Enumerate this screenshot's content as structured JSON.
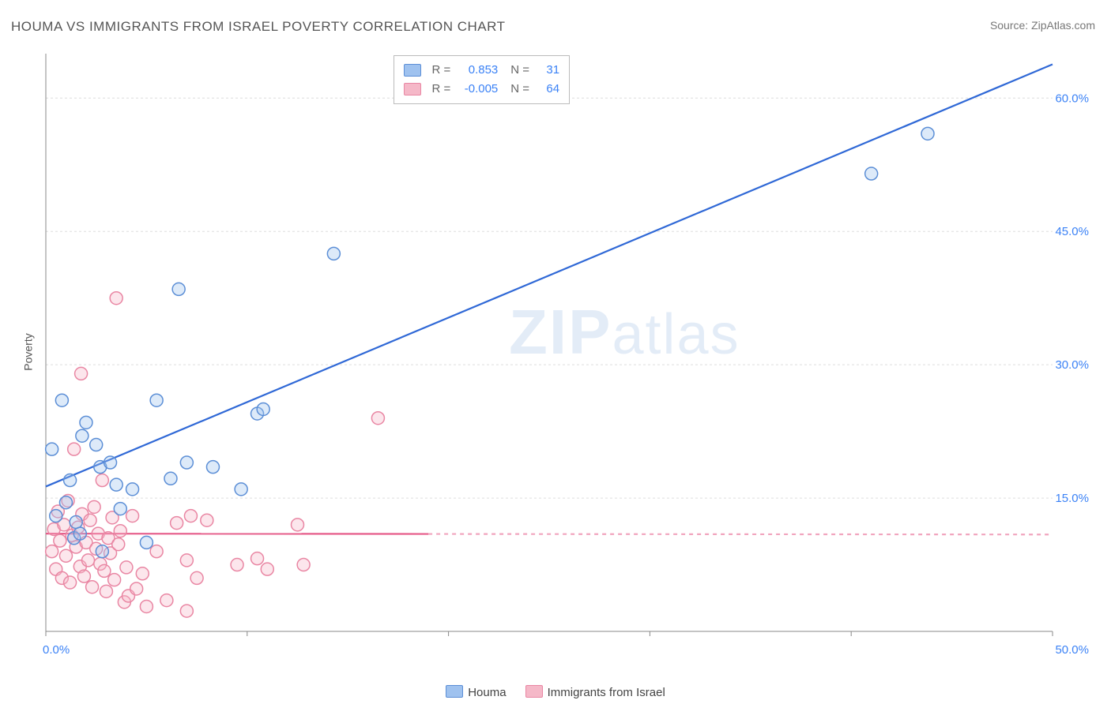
{
  "title": "HOUMA VS IMMIGRANTS FROM ISRAEL POVERTY CORRELATION CHART",
  "source": "Source: ZipAtlas.com",
  "ylabel": "Poverty",
  "watermark_zip": "ZIP",
  "watermark_atlas": "atlas",
  "chart": {
    "type": "scatter-with-regression",
    "xlim": [
      0,
      50
    ],
    "ylim": [
      0,
      65
    ],
    "x_ticks": [
      0,
      10,
      20,
      30,
      40,
      50
    ],
    "y_ticks": [
      15,
      30,
      45,
      60
    ],
    "x_tick_labels": [
      "0.0%",
      "",
      "",
      "",
      "",
      "50.0%"
    ],
    "y_tick_labels": [
      "15.0%",
      "30.0%",
      "45.0%",
      "60.0%"
    ],
    "background_color": "#ffffff",
    "grid_color": "#dddddd",
    "axis_color": "#888888",
    "tick_label_color": "#3b82f6",
    "tick_label_fontsize": 15,
    "marker_radius": 8,
    "marker_fill_opacity": 0.35,
    "marker_stroke_width": 1.5,
    "series": [
      {
        "name": "Houma",
        "color_fill": "#9fc2ef",
        "color_stroke": "#5b8ed6",
        "line_color": "#2f68d6",
        "line_width": 2.2,
        "r": 0.853,
        "n": 31,
        "regression": {
          "x1": 0,
          "y1": 16.3,
          "x2": 50,
          "y2": 63.8,
          "solid_until_x": 50
        },
        "points": [
          [
            0.3,
            20.5
          ],
          [
            0.5,
            13.0
          ],
          [
            0.8,
            26.0
          ],
          [
            1.0,
            14.5
          ],
          [
            1.2,
            17.0
          ],
          [
            1.4,
            10.5
          ],
          [
            1.5,
            12.3
          ],
          [
            1.7,
            11.0
          ],
          [
            1.8,
            22.0
          ],
          [
            2.0,
            23.5
          ],
          [
            2.5,
            21.0
          ],
          [
            2.7,
            18.5
          ],
          [
            2.8,
            9.0
          ],
          [
            3.2,
            19.0
          ],
          [
            3.5,
            16.5
          ],
          [
            3.7,
            13.8
          ],
          [
            4.3,
            16.0
          ],
          [
            5.0,
            10.0
          ],
          [
            5.5,
            26.0
          ],
          [
            6.2,
            17.2
          ],
          [
            6.6,
            38.5
          ],
          [
            7.0,
            19.0
          ],
          [
            8.3,
            18.5
          ],
          [
            9.7,
            16.0
          ],
          [
            10.5,
            24.5
          ],
          [
            10.8,
            25.0
          ],
          [
            14.3,
            42.5
          ],
          [
            41.0,
            51.5
          ],
          [
            43.8,
            56.0
          ]
        ]
      },
      {
        "name": "Immigrants from Israel",
        "color_fill": "#f5b8c8",
        "color_stroke": "#e986a3",
        "line_color": "#e65c8a",
        "line_width": 2.2,
        "r": -0.005,
        "n": 64,
        "regression": {
          "x1": 0,
          "y1": 11.0,
          "x2": 50,
          "y2": 10.9,
          "solid_until_x": 19
        },
        "points": [
          [
            0.3,
            9.0
          ],
          [
            0.4,
            11.5
          ],
          [
            0.5,
            7.0
          ],
          [
            0.6,
            13.5
          ],
          [
            0.7,
            10.2
          ],
          [
            0.8,
            6.0
          ],
          [
            0.9,
            12.0
          ],
          [
            1.0,
            8.5
          ],
          [
            1.1,
            14.7
          ],
          [
            1.2,
            5.5
          ],
          [
            1.3,
            10.8
          ],
          [
            1.4,
            20.5
          ],
          [
            1.5,
            9.5
          ],
          [
            1.6,
            11.7
          ],
          [
            1.7,
            7.3
          ],
          [
            1.75,
            29.0
          ],
          [
            1.8,
            13.2
          ],
          [
            1.9,
            6.2
          ],
          [
            2.0,
            10.0
          ],
          [
            2.1,
            8.0
          ],
          [
            2.2,
            12.5
          ],
          [
            2.3,
            5.0
          ],
          [
            2.4,
            14.0
          ],
          [
            2.5,
            9.3
          ],
          [
            2.6,
            11.0
          ],
          [
            2.7,
            7.6
          ],
          [
            2.8,
            17.0
          ],
          [
            2.9,
            6.8
          ],
          [
            3.0,
            4.5
          ],
          [
            3.1,
            10.5
          ],
          [
            3.2,
            8.8
          ],
          [
            3.3,
            12.8
          ],
          [
            3.4,
            5.8
          ],
          [
            3.5,
            37.5
          ],
          [
            3.6,
            9.8
          ],
          [
            3.7,
            11.3
          ],
          [
            3.9,
            3.3
          ],
          [
            4.0,
            7.2
          ],
          [
            4.1,
            4.0
          ],
          [
            4.3,
            13.0
          ],
          [
            4.5,
            4.8
          ],
          [
            4.8,
            6.5
          ],
          [
            5.0,
            2.8
          ],
          [
            5.5,
            9.0
          ],
          [
            6.0,
            3.5
          ],
          [
            6.5,
            12.2
          ],
          [
            7.0,
            8.0
          ],
          [
            7.0,
            2.3
          ],
          [
            7.2,
            13.0
          ],
          [
            7.5,
            6.0
          ],
          [
            8.0,
            12.5
          ],
          [
            9.5,
            7.5
          ],
          [
            10.5,
            8.2
          ],
          [
            11.0,
            7.0
          ],
          [
            12.5,
            12.0
          ],
          [
            12.8,
            7.5
          ],
          [
            16.5,
            24.0
          ]
        ]
      }
    ]
  },
  "legend_top": {
    "rows": [
      {
        "swatch_fill": "#9fc2ef",
        "swatch_stroke": "#5b8ed6",
        "r_label": "R =",
        "r_val": "0.853",
        "n_label": "N =",
        "n_val": "31"
      },
      {
        "swatch_fill": "#f5b8c8",
        "swatch_stroke": "#e986a3",
        "r_label": "R =",
        "r_val": "-0.005",
        "n_label": "N =",
        "n_val": "64"
      }
    ]
  },
  "legend_bottom": [
    {
      "swatch_fill": "#9fc2ef",
      "swatch_stroke": "#5b8ed6",
      "label": "Houma"
    },
    {
      "swatch_fill": "#f5b8c8",
      "swatch_stroke": "#e986a3",
      "label": "Immigrants from Israel"
    }
  ]
}
